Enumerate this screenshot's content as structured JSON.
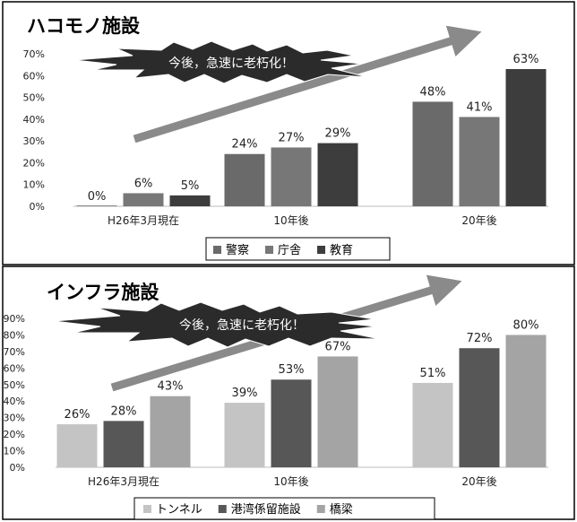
{
  "chart_data": [
    {
      "type": "bar",
      "title": "ハコモノ施設",
      "banner": "今後，急速に老朽化！",
      "categories": [
        "H26年3月現在",
        "10年後",
        "20年後"
      ],
      "series": [
        {
          "name": "警察",
          "values": [
            0,
            24,
            48
          ],
          "color": "#6a6a6a"
        },
        {
          "name": "庁舎",
          "values": [
            6,
            27,
            41
          ],
          "color": "#777777"
        },
        {
          "name": "教育",
          "values": [
            5,
            29,
            63
          ],
          "color": "#3d3d3d"
        }
      ],
      "data_labels": [
        [
          "0%",
          "24%",
          "48%"
        ],
        [
          "6%",
          "27%",
          "41%"
        ],
        [
          "5%",
          "29%",
          "63%"
        ]
      ],
      "y_ticks": [
        "0%",
        "10%",
        "20%",
        "30%",
        "40%",
        "50%",
        "60%",
        "70%"
      ],
      "ylim": [
        0,
        70
      ],
      "legend_position": "bottom",
      "grid": false
    },
    {
      "type": "bar",
      "title": "インフラ施設",
      "banner": "今後，急速に老朽化！",
      "categories": [
        "H26年3月現在",
        "10年後",
        "20年後"
      ],
      "series": [
        {
          "name": "トンネル",
          "values": [
            26,
            39,
            51
          ],
          "color": "#c4c4c4"
        },
        {
          "name": "港湾係留施設",
          "values": [
            28,
            53,
            72
          ],
          "color": "#575757"
        },
        {
          "name": "橋梁",
          "values": [
            43,
            67,
            80
          ],
          "color": "#a4a4a4"
        }
      ],
      "data_labels": [
        [
          "26%",
          "39%",
          "51%"
        ],
        [
          "28%",
          "53%",
          "72%"
        ],
        [
          "43%",
          "67%",
          "80%"
        ]
      ],
      "y_ticks": [
        "0%",
        "10%",
        "20%",
        "30%",
        "40%",
        "50%",
        "60%",
        "70%",
        "80%",
        "90%"
      ],
      "ylim": [
        0,
        90
      ],
      "legend_position": "bottom",
      "grid": false
    }
  ]
}
